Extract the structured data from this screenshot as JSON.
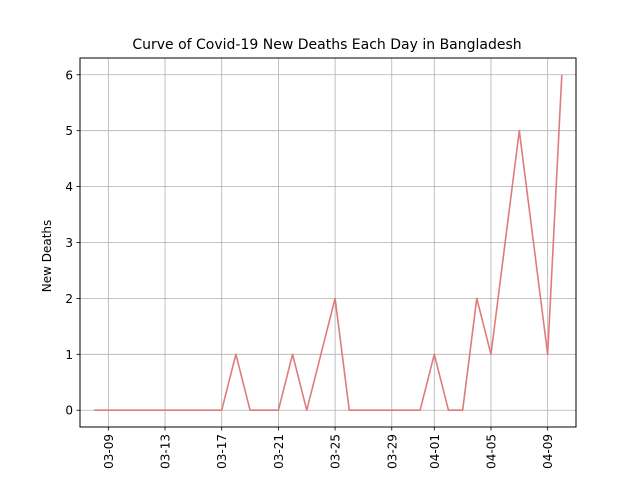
{
  "chart_data": {
    "type": "line",
    "title": "Curve of Covid-19 New Deaths Each Day in Bangladesh",
    "xlabel": "",
    "ylabel": "New Deaths",
    "x_dates": [
      "2020-03-08",
      "2020-03-09",
      "2020-03-10",
      "2020-03-11",
      "2020-03-12",
      "2020-03-13",
      "2020-03-14",
      "2020-03-15",
      "2020-03-16",
      "2020-03-17",
      "2020-03-18",
      "2020-03-19",
      "2020-03-20",
      "2020-03-21",
      "2020-03-22",
      "2020-03-23",
      "2020-03-24",
      "2020-03-25",
      "2020-03-26",
      "2020-03-27",
      "2020-03-28",
      "2020-03-29",
      "2020-03-30",
      "2020-03-31",
      "2020-04-01",
      "2020-04-02",
      "2020-04-03",
      "2020-04-04",
      "2020-04-05",
      "2020-04-06",
      "2020-04-07",
      "2020-04-08",
      "2020-04-09",
      "2020-04-10"
    ],
    "series": [
      {
        "values": [
          0,
          0,
          0,
          0,
          0,
          0,
          0,
          0,
          0,
          0,
          1,
          0,
          0,
          0,
          1,
          0,
          1,
          2,
          0,
          0,
          0,
          0,
          0,
          0,
          1,
          0,
          0,
          2,
          1,
          3,
          5,
          3,
          1,
          6
        ],
        "color": "#e07b7b"
      }
    ],
    "x_ticks": [
      {
        "date": "2020-03-09",
        "label": "03-09"
      },
      {
        "date": "2020-03-13",
        "label": "03-13"
      },
      {
        "date": "2020-03-17",
        "label": "03-17"
      },
      {
        "date": "2020-03-21",
        "label": "03-21"
      },
      {
        "date": "2020-03-25",
        "label": "03-25"
      },
      {
        "date": "2020-03-29",
        "label": "03-29"
      },
      {
        "date": "2020-04-01",
        "label": "04-01"
      },
      {
        "date": "2020-04-05",
        "label": "04-05"
      },
      {
        "date": "2020-04-09",
        "label": "04-09"
      }
    ],
    "y_ticks": [
      {
        "value": 0,
        "label": "0"
      },
      {
        "value": 1,
        "label": "1"
      },
      {
        "value": 2,
        "label": "2"
      },
      {
        "value": 3,
        "label": "3"
      },
      {
        "value": 4,
        "label": "4"
      },
      {
        "value": 5,
        "label": "5"
      },
      {
        "value": 6,
        "label": "6"
      }
    ],
    "ylim": [
      -0.3,
      6.3
    ],
    "xlim": [
      "2020-03-07",
      "2020-04-11"
    ],
    "grid": true,
    "legend": "none"
  }
}
